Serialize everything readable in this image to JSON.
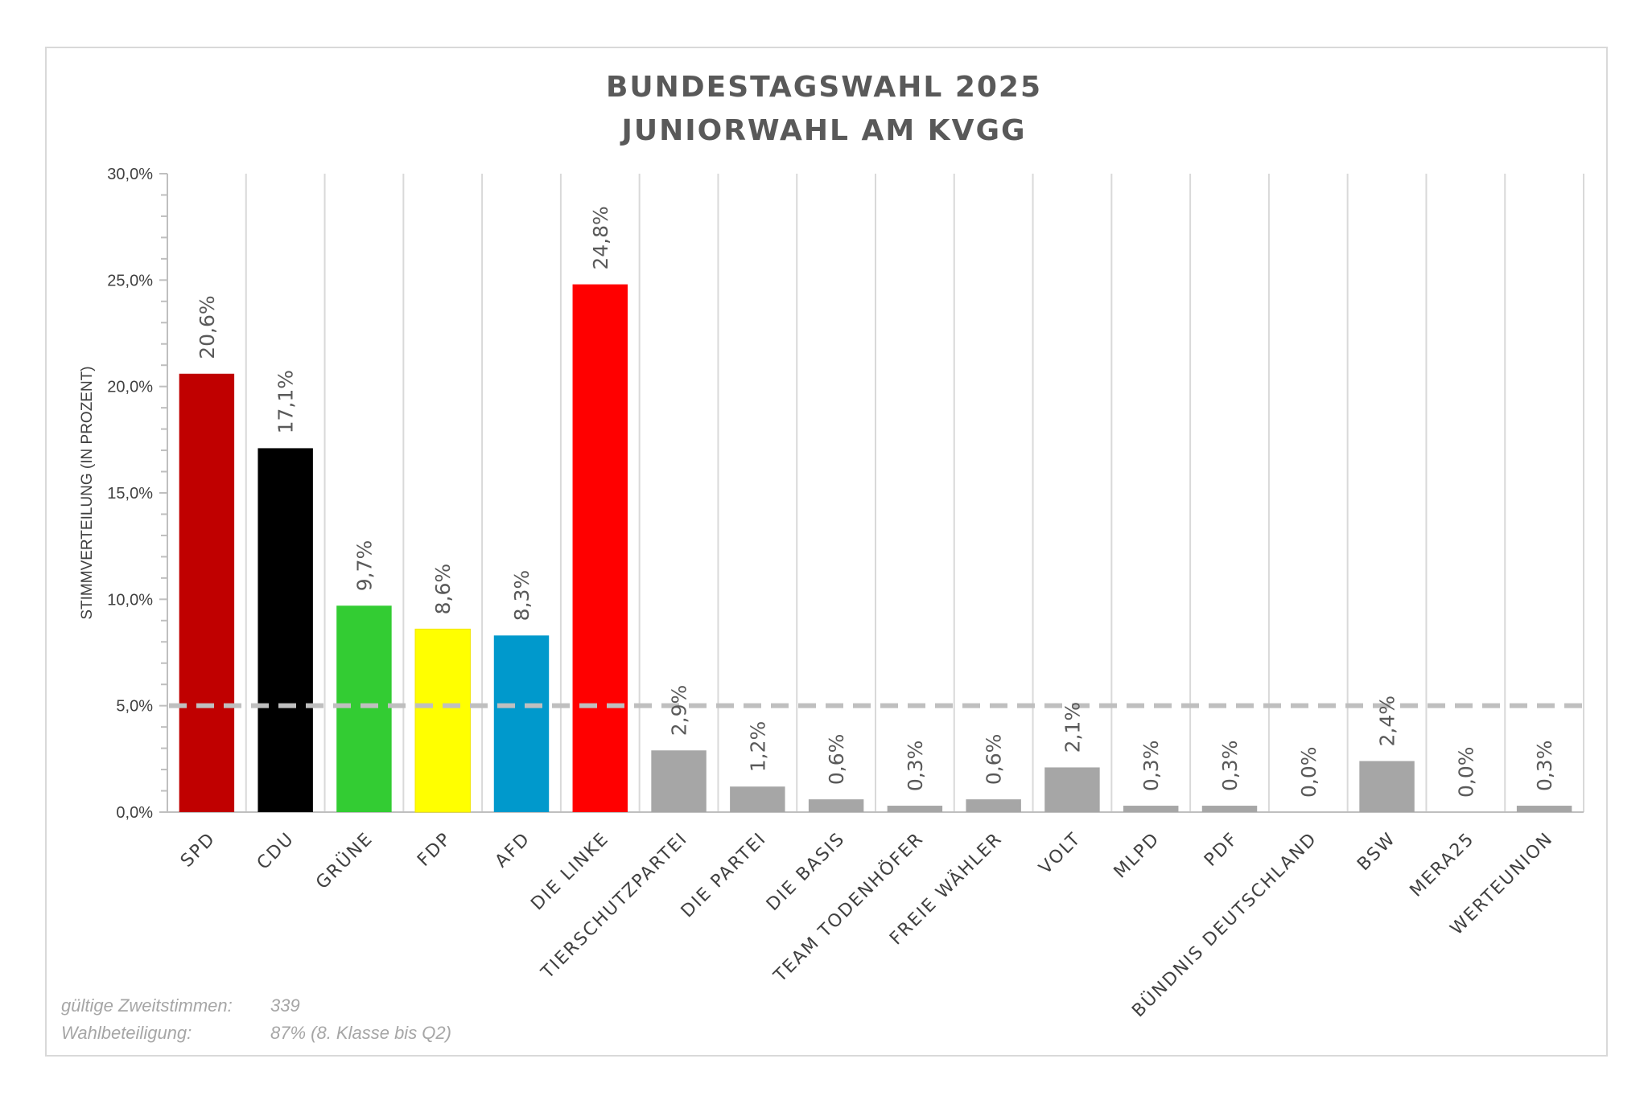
{
  "chart_data": {
    "type": "bar",
    "title": "BUNDESTAGSWAHL 2025",
    "subtitle": "JUNIORWAHL AM KVGG",
    "ylabel": "STIMMVERTEILUNG (IN PROZENT)",
    "xlabel": "",
    "ylim": [
      0,
      30
    ],
    "yticks": [
      "0,0%",
      "5,0%",
      "10,0%",
      "15,0%",
      "20,0%",
      "25,0%",
      "30,0%"
    ],
    "threshold": 5,
    "grid": "vertical",
    "categories": [
      "SPD",
      "CDU",
      "GRÜNE",
      "FDP",
      "AFD",
      "DIE LINKE",
      "TIERSCHUTZPARTEI",
      "DIE PARTEI",
      "DIE BASIS",
      "TEAM TODENHÖFER",
      "FREIE WÄHLER",
      "VOLT",
      "MLPD",
      "PDF",
      "BÜNDNIS DEUTSCHLAND",
      "BSW",
      "MERA25",
      "WERTEUNION"
    ],
    "values": [
      20.6,
      17.1,
      9.7,
      8.6,
      8.3,
      24.8,
      2.9,
      1.2,
      0.6,
      0.3,
      0.6,
      2.1,
      0.3,
      0.3,
      0.0,
      2.4,
      0.0,
      0.3
    ],
    "value_labels": [
      "20,6%",
      "17,1%",
      "9,7%",
      "8,6%",
      "8,3%",
      "24,8%",
      "2,9%",
      "1,2%",
      "0,6%",
      "0,3%",
      "0,6%",
      "2,1%",
      "0,3%",
      "0,3%",
      "0,0%",
      "2,4%",
      "0,0%",
      "0,3%"
    ],
    "colors": [
      "#c00000",
      "#000000",
      "#33cc33",
      "#ffff00",
      "#0099cc",
      "#ff0000",
      "#a6a6a6",
      "#a6a6a6",
      "#a6a6a6",
      "#a6a6a6",
      "#a6a6a6",
      "#a6a6a6",
      "#a6a6a6",
      "#a6a6a6",
      "#a6a6a6",
      "#a6a6a6",
      "#a6a6a6",
      "#a6a6a6"
    ]
  },
  "notes": {
    "valid_votes_label": "gültige Zweitstimmen:",
    "valid_votes_value": "339",
    "turnout_label": "Wahlbeteiligung:",
    "turnout_value": "87% (8. Klasse bis Q2)"
  }
}
